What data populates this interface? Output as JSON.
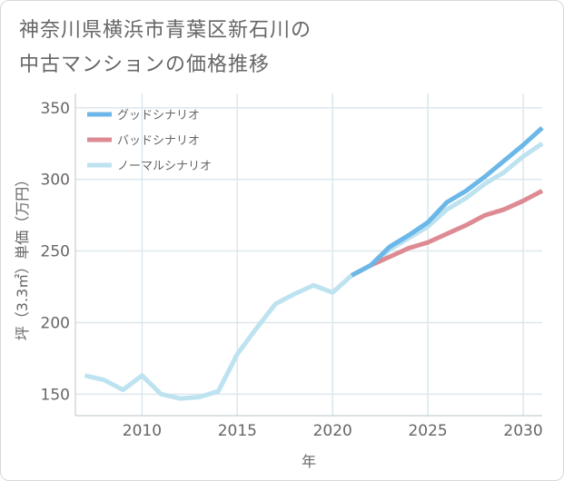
{
  "title_lines": [
    "神奈川県横浜市青葉区新石川の",
    "中古マンションの価格推移"
  ],
  "chart_data": {
    "type": "line",
    "title": "神奈川県横浜市青葉区新石川の中古マンションの価格推移",
    "xlabel": "年",
    "ylabel": "坪（3.3㎡）単価（万円）",
    "xlim": [
      2006.5,
      2031
    ],
    "ylim": [
      135,
      360
    ],
    "xticks": [
      2010,
      2015,
      2020,
      2025,
      2030
    ],
    "yticks": [
      150,
      200,
      250,
      300,
      350
    ],
    "x_tick_labels": [
      "2010",
      "2015",
      "2020",
      "2025",
      "2030"
    ],
    "y_tick_labels": [
      "150",
      "200",
      "250",
      "300",
      "350"
    ],
    "legend_position": "top-left",
    "series": [
      {
        "name": "グッドシナリオ",
        "color": "#6bb8e8",
        "x": [
          2021,
          2022,
          2023,
          2024,
          2025,
          2026,
          2027,
          2028,
          2029,
          2030,
          2031
        ],
        "values": [
          233,
          240,
          253,
          261,
          270,
          284,
          292,
          302,
          313,
          324,
          336
        ]
      },
      {
        "name": "バッドシナリオ",
        "color": "#dd8a93",
        "x": [
          2021,
          2022,
          2023,
          2024,
          2025,
          2026,
          2027,
          2028,
          2029,
          2030,
          2031
        ],
        "values": [
          233,
          240,
          246,
          252,
          256,
          262,
          268,
          275,
          279,
          285,
          292
        ]
      },
      {
        "name": "ノーマルシナリオ",
        "color": "#bde2f0",
        "x": [
          2007,
          2008,
          2009,
          2010,
          2011,
          2012,
          2013,
          2014,
          2015,
          2016,
          2017,
          2018,
          2019,
          2020,
          2021,
          2022,
          2023,
          2024,
          2025,
          2026,
          2027,
          2028,
          2029,
          2030,
          2031
        ],
        "values": [
          163,
          160,
          153,
          163,
          150,
          147,
          148,
          152,
          178,
          196,
          213,
          220,
          226,
          221,
          233,
          240,
          251,
          259,
          267,
          279,
          287,
          297,
          305,
          316,
          325
        ]
      }
    ]
  }
}
